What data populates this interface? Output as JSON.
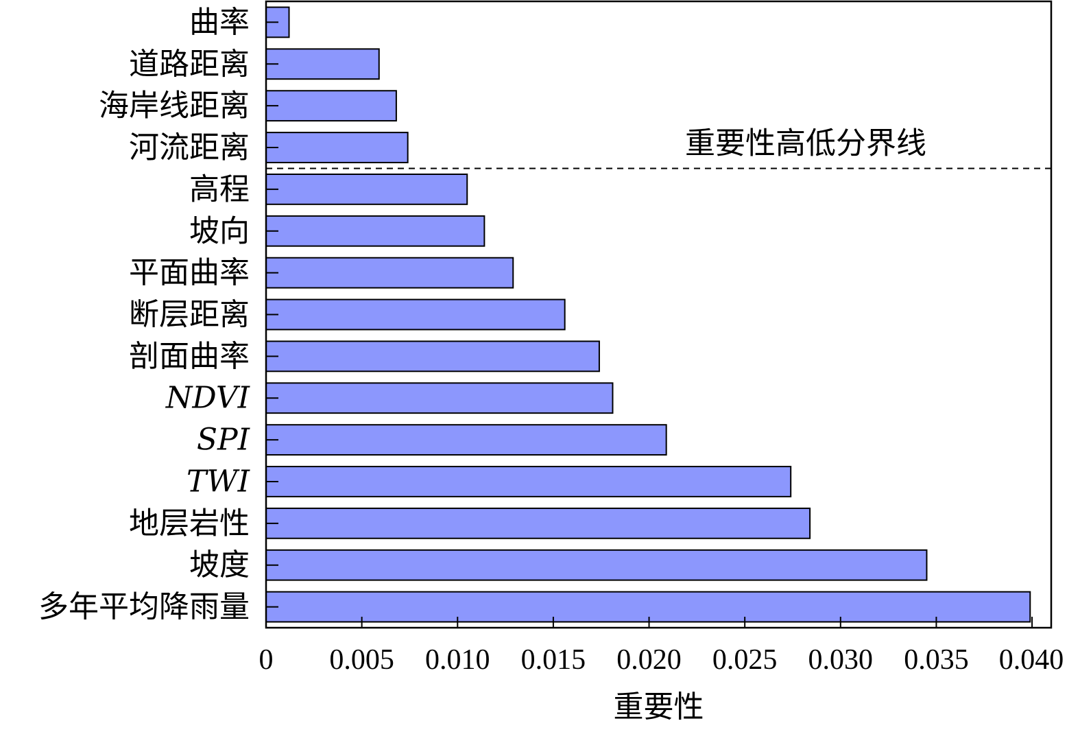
{
  "chart_data": {
    "type": "bar",
    "orientation": "horizontal",
    "categories": [
      "曲率",
      "道路距离",
      "海岸线距离",
      "河流距离",
      "高程",
      "坡向",
      "平面曲率",
      "断层距离",
      "剖面曲率",
      "NDVI",
      "SPI",
      "TWI",
      "地层岩性",
      "坡度",
      "多年平均降雨量"
    ],
    "italic_categories": [
      "NDVI",
      "SPI",
      "TWI"
    ],
    "values": [
      0.0012,
      0.0059,
      0.0068,
      0.0074,
      0.0105,
      0.0114,
      0.0129,
      0.0156,
      0.0174,
      0.0181,
      0.0209,
      0.0274,
      0.0284,
      0.0345,
      0.0399
    ],
    "xlabel": "重要性",
    "xlim": [
      0,
      0.041
    ],
    "xticks": [
      0,
      0.005,
      0.01,
      0.015,
      0.02,
      0.025,
      0.03,
      0.035,
      0.04
    ],
    "xtick_labels": [
      "0",
      "0.005",
      "0.010",
      "0.015",
      "0.020",
      "0.025",
      "0.030",
      "0.035",
      "0.040"
    ],
    "bar_color": "#8c97fd",
    "divider": {
      "label": "重要性高低分界线",
      "between_categories": [
        "河流距离",
        "高程"
      ],
      "style": "dashed"
    },
    "grid": false
  }
}
